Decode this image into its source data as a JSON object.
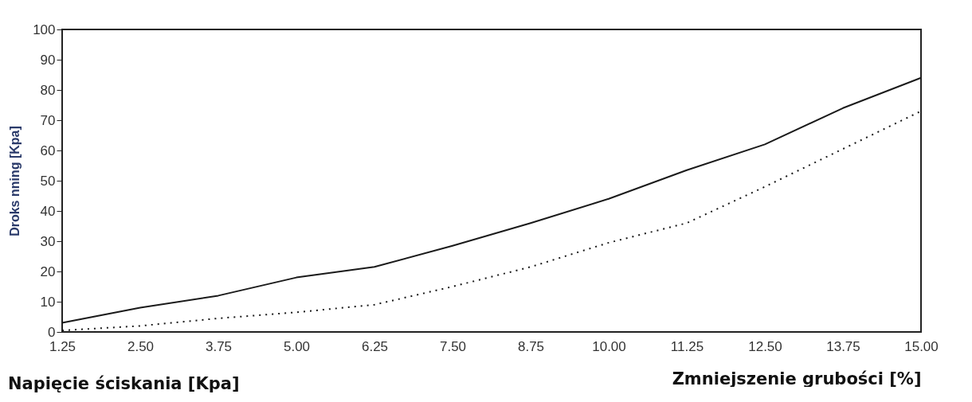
{
  "chart_data": {
    "type": "line",
    "ylabel": "Droks nning [Kpa]",
    "xlabel": "Zmniejszenie grubości [%]",
    "annotations": [
      "Napięcie ściskania [Kpa]"
    ],
    "categories": [
      "1.25",
      "2.50",
      "3.75",
      "5.00",
      "6.25",
      "7.50",
      "8.75",
      "10.00",
      "11.25",
      "12.50",
      "13.75",
      "15.00"
    ],
    "series": [
      {
        "color": "#1a1a1a",
        "line_style": "solid",
        "values": [
          3,
          8,
          12,
          18,
          21.5,
          28.5,
          36,
          44,
          53.5,
          62,
          74,
          84
        ]
      },
      {
        "color": "#1a1a1a",
        "line_style": "dotted",
        "values": [
          0.5,
          2,
          4.5,
          6.5,
          9,
          15,
          21.5,
          29.5,
          36,
          48,
          60.5,
          73
        ]
      }
    ],
    "ylim": [
      0,
      100
    ],
    "yticks": [
      0,
      10,
      20,
      30,
      40,
      50,
      60,
      70,
      80,
      90,
      100
    ],
    "grid": false,
    "marker": "none"
  }
}
